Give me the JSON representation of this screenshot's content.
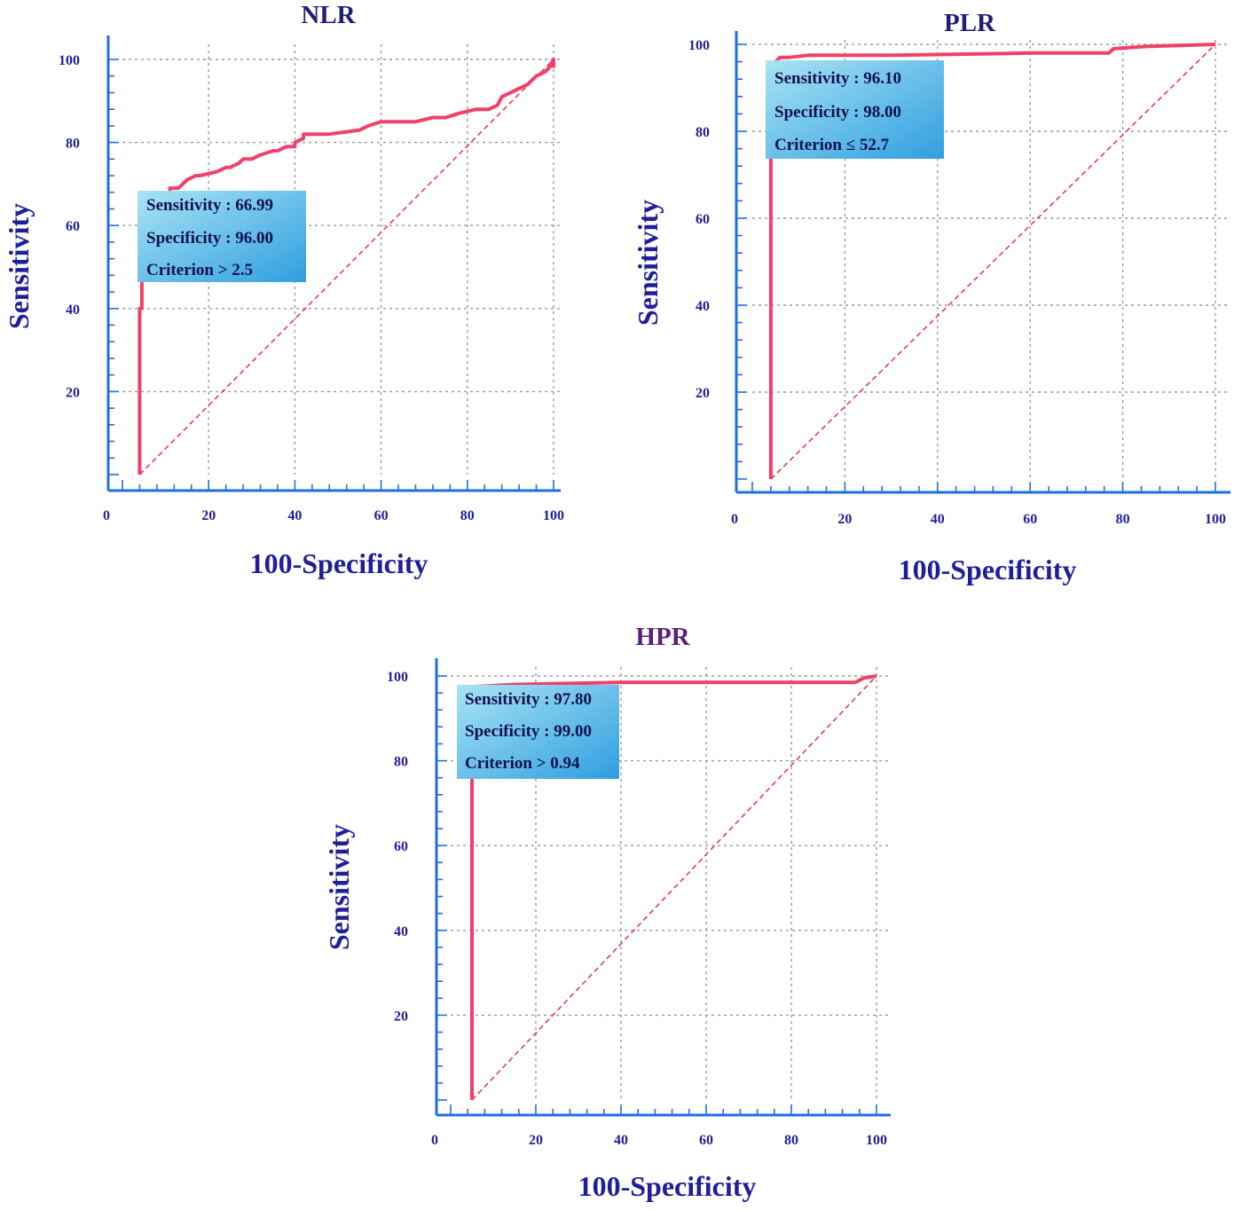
{
  "colors": {
    "axis": "#1f6fe0",
    "axis_label": "#1f1f9a",
    "grid": "#9a9a9a",
    "roc_curve": "#f0406a",
    "reference_line": "#e0404a",
    "info_box_top": "#a9e4f4",
    "info_box_bottom": "#2f9ee0",
    "title_nlr_plr": "#1f1f7a",
    "title_hpr": "#5a1f7a"
  },
  "chart_data": [
    {
      "type": "line",
      "title": "NLR",
      "xlabel": "100-Specificity",
      "ylabel": "Sensitivity",
      "xlim": [
        0,
        100
      ],
      "ylim": [
        0,
        100
      ],
      "x_ticks": [
        "0",
        "20",
        "40",
        "60",
        "80",
        "100"
      ],
      "y_ticks": [
        "20",
        "40",
        "60",
        "80",
        "100"
      ],
      "grid": true,
      "info_box": [
        "Sensitivity : 66.99",
        "Specificity : 96.00",
        "Criterion > 2.5"
      ],
      "series": [
        {
          "x": [
            4,
            4,
            4.5,
            4.5,
            5,
            5,
            6,
            6,
            7,
            8,
            9,
            10,
            11,
            11,
            13,
            14,
            15,
            17,
            18,
            22,
            24,
            25,
            27,
            28,
            30,
            32,
            35,
            36,
            38,
            40,
            40,
            42,
            42,
            48,
            55,
            57,
            60,
            68,
            72,
            75,
            78,
            82,
            85,
            87,
            88,
            90,
            92,
            94,
            96,
            98,
            99,
            100,
            100
          ],
          "y": [
            0,
            40,
            40,
            55,
            56,
            57,
            58,
            60,
            62,
            64,
            66,
            67,
            67,
            69,
            69,
            70,
            71,
            72,
            72,
            73,
            74,
            74,
            75,
            76,
            76,
            77,
            78,
            78,
            79,
            79,
            80,
            81,
            82,
            82,
            83,
            84,
            85,
            85,
            86,
            86,
            87,
            88,
            88,
            89,
            91,
            92,
            93,
            94,
            96,
            97,
            98,
            100,
            98
          ]
        },
        {
          "name": "reference",
          "x": [
            4,
            100
          ],
          "y": [
            0,
            100
          ]
        }
      ]
    },
    {
      "type": "line",
      "title": "PLR",
      "xlabel": "100-Specificity",
      "ylabel": "Sensitivity",
      "xlim": [
        0,
        100
      ],
      "ylim": [
        0,
        100
      ],
      "x_ticks": [
        "0",
        "20",
        "40",
        "60",
        "80",
        "100"
      ],
      "y_ticks": [
        "20",
        "40",
        "60",
        "80",
        "100"
      ],
      "grid": true,
      "info_box": [
        "Sensitivity : 96.10",
        "Specificity : 98.00",
        "Criterion ≤  52.7"
      ],
      "series": [
        {
          "x": [
            4,
            4,
            4,
            4.5,
            5,
            6,
            8,
            12,
            30,
            60,
            77,
            78,
            85,
            100
          ],
          "y": [
            0,
            80,
            93,
            95,
            96,
            97,
            97,
            97.5,
            97.5,
            98,
            98,
            99,
            99.5,
            100
          ]
        },
        {
          "name": "reference",
          "x": [
            4,
            100
          ],
          "y": [
            0,
            100
          ]
        }
      ]
    },
    {
      "type": "line",
      "title": "HPR",
      "xlabel": "100-Specificity",
      "ylabel": "Sensitivity",
      "xlim": [
        0,
        100
      ],
      "ylim": [
        0,
        100
      ],
      "x_ticks": [
        "0",
        "20",
        "40",
        "60",
        "80",
        "100"
      ],
      "y_ticks": [
        "20",
        "40",
        "60",
        "80",
        "100"
      ],
      "grid": true,
      "info_box": [
        "Sensitivity : 97.80",
        "Specificity : 99.00",
        "Criterion > 0.94"
      ],
      "series": [
        {
          "x": [
            5,
            5,
            6,
            15,
            40,
            80,
            95,
            97,
            100
          ],
          "y": [
            0,
            97,
            97.5,
            98,
            98.5,
            98.5,
            98.5,
            99.5,
            100
          ]
        },
        {
          "name": "reference",
          "x": [
            5,
            100
          ],
          "y": [
            0,
            100
          ]
        }
      ]
    }
  ]
}
